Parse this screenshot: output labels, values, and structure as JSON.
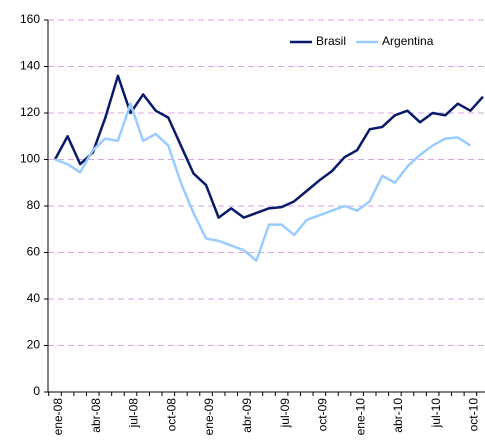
{
  "chart_data": {
    "type": "line",
    "categories": [
      "ene-08",
      null,
      null,
      "abr-08",
      null,
      null,
      "jul-08",
      null,
      null,
      "oct-08",
      null,
      null,
      "ene-09",
      null,
      null,
      "abr-09",
      null,
      null,
      "jul-09",
      null,
      null,
      "oct-09",
      null,
      null,
      "ene-10",
      null,
      null,
      "abr-10",
      null,
      null,
      "jul-10",
      null,
      null,
      "oct-10",
      null
    ],
    "series": [
      {
        "name": "Brasil",
        "color": "#0a1a6b",
        "values": [
          100,
          110,
          98,
          103,
          118,
          136,
          120,
          128,
          121,
          118,
          106,
          94,
          89,
          75,
          79,
          75,
          77,
          79,
          79.5,
          82,
          86.5,
          91,
          95,
          101,
          104,
          113,
          114,
          119,
          121,
          116,
          120,
          119,
          124,
          121,
          127
        ]
      },
      {
        "name": "Argentina",
        "color": "#99ccff",
        "values": [
          100,
          98,
          94.5,
          104,
          109,
          108,
          124,
          108,
          111,
          106,
          90,
          77,
          66,
          65,
          63,
          61,
          56.5,
          72,
          72,
          67.5,
          74,
          76,
          78,
          80,
          78,
          82,
          93,
          90,
          97,
          102,
          106,
          109,
          109.5,
          106,
          null
        ]
      }
    ],
    "ylim": [
      0,
      160
    ],
    "yticks": [
      0,
      20,
      40,
      60,
      80,
      100,
      120,
      140,
      160
    ],
    "grid": true,
    "grid_color": "#d9a6e6",
    "legend": "upper right"
  }
}
